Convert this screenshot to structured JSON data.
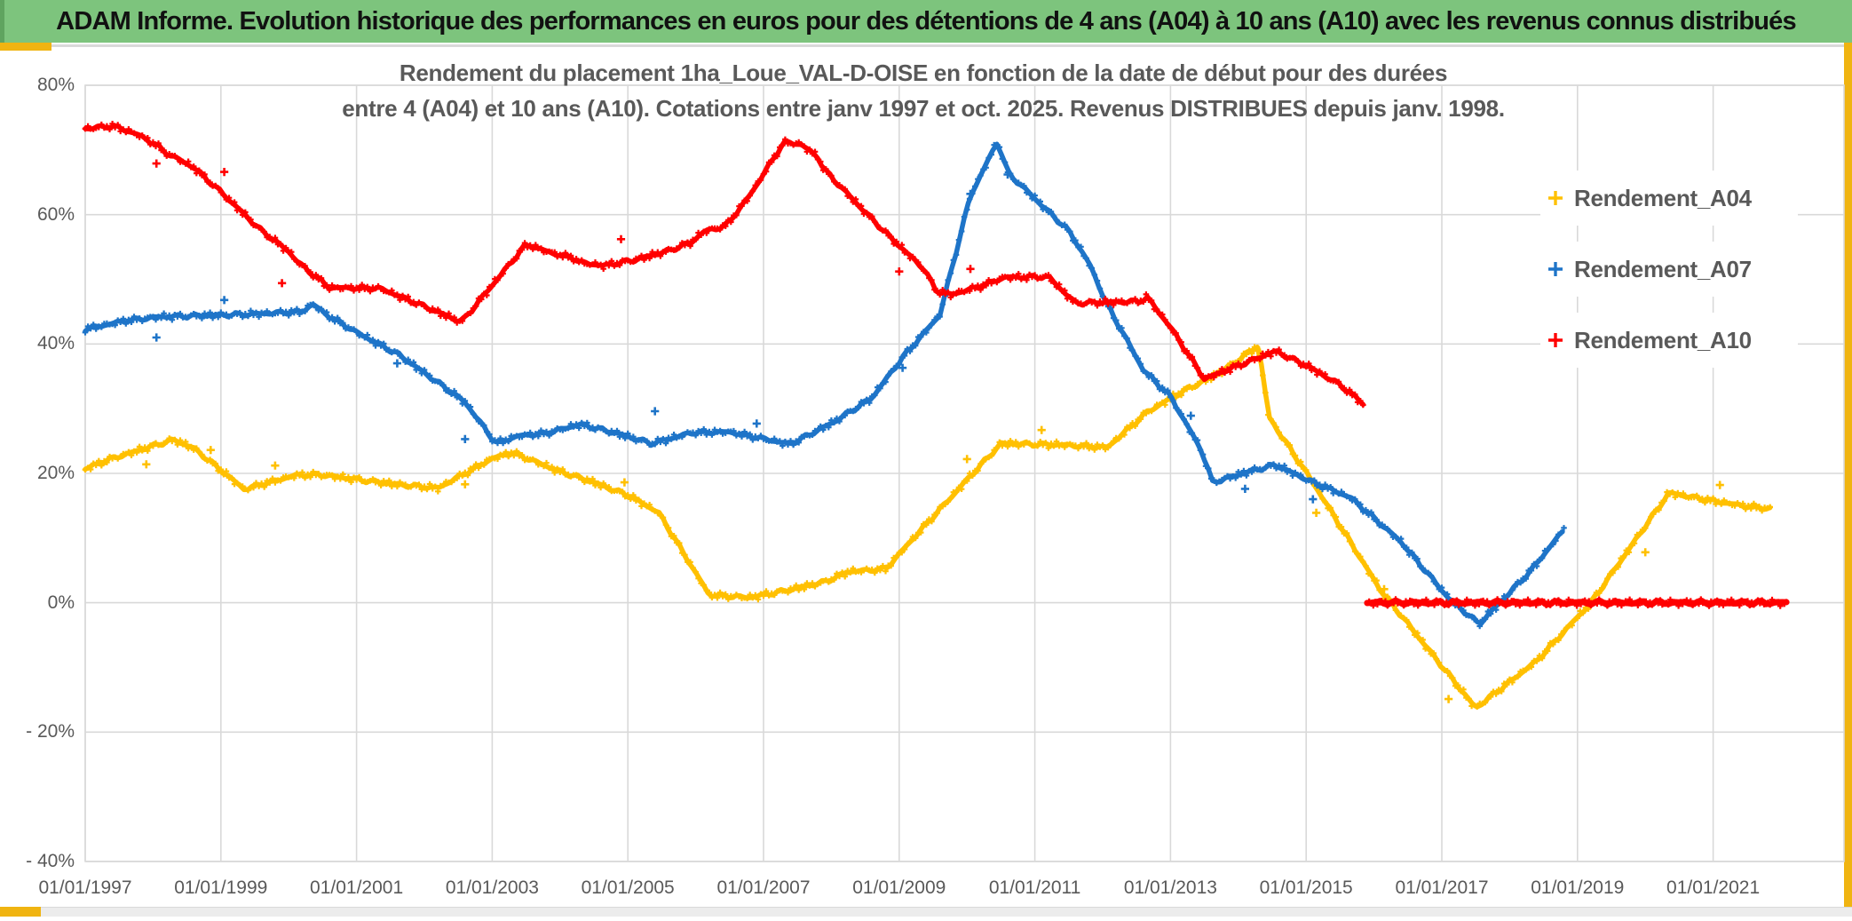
{
  "header": {
    "title": "ADAM Informe. Evolution historique des performances en euros pour des détentions de 4 ans (A04) à 10 ans (A10) avec les revenus connus distribués",
    "bar_color": "#7DC47D",
    "accent_gold": "#F0B411"
  },
  "chart_data": {
    "type": "scatter",
    "title_line1": "Rendement du placement 1ha_Loue_VAL-D-OISE en fonction de la date de début pour des durées",
    "title_line2": "entre 4 (A04) et 10 ans (A10). Cotations entre janv 1997 et oct. 2025. Revenus DISTRIBUES depuis janv. 1998.",
    "grid": true,
    "grid_color": "#D9D9D9",
    "text_color": "#595959",
    "legend_position": "right-inside",
    "x_domain": [
      1997.0,
      2022.93
    ],
    "y_domain": [
      -40,
      80
    ],
    "y_ticks": [
      {
        "v": 80,
        "label": "80%"
      },
      {
        "v": 60,
        "label": "60%"
      },
      {
        "v": 40,
        "label": "40%"
      },
      {
        "v": 20,
        "label": "20%"
      },
      {
        "v": 0,
        "label": "0%"
      },
      {
        "v": -20,
        "label": "- 20%"
      },
      {
        "v": -40,
        "label": "- 40%"
      }
    ],
    "x_ticks": [
      {
        "t": 1997,
        "label": "01/01/1997"
      },
      {
        "t": 1999,
        "label": "01/01/1999"
      },
      {
        "t": 2001,
        "label": "01/01/2001"
      },
      {
        "t": 2003,
        "label": "01/01/2003"
      },
      {
        "t": 2005,
        "label": "01/01/2005"
      },
      {
        "t": 2007,
        "label": "01/01/2007"
      },
      {
        "t": 2009,
        "label": "01/01/2009"
      },
      {
        "t": 2011,
        "label": "01/01/2011"
      },
      {
        "t": 2013,
        "label": "01/01/2013"
      },
      {
        "t": 2015,
        "label": "01/01/2015"
      },
      {
        "t": 2017,
        "label": "01/01/2017"
      },
      {
        "t": 2019,
        "label": "01/01/2019"
      },
      {
        "t": 2021,
        "label": "01/01/2021"
      }
    ],
    "series": [
      {
        "name": "Rendement_A04",
        "color": "#FFC000",
        "segments": [
          {
            "width": 5.5,
            "points": [
              [
                1997.0,
                20.7
              ],
              [
                1997.4,
                22.3
              ],
              [
                1998.3,
                25.2
              ],
              [
                1998.6,
                23.9
              ],
              [
                1999.35,
                17.5
              ],
              [
                1999.6,
                18.3
              ],
              [
                2000.1,
                19.7
              ],
              [
                2000.45,
                19.8
              ],
              [
                2001.2,
                18.8
              ],
              [
                2001.5,
                18.4
              ],
              [
                2002.2,
                17.7
              ],
              [
                2003.0,
                22.3
              ],
              [
                2003.3,
                23.2
              ],
              [
                2004.0,
                20.3
              ],
              [
                2004.5,
                18.6
              ],
              [
                2005.0,
                16.6
              ],
              [
                2005.45,
                14.0
              ],
              [
                2006.2,
                1.2
              ],
              [
                2006.8,
                0.8
              ],
              [
                2007.3,
                1.8
              ],
              [
                2007.9,
                3.2
              ],
              [
                2008.25,
                4.8
              ],
              [
                2008.8,
                5.2
              ],
              [
                2009.3,
                11.0
              ],
              [
                2010.0,
                19.0
              ],
              [
                2010.5,
                24.6
              ],
              [
                2011.4,
                24.4
              ],
              [
                2012.07,
                24.0
              ],
              [
                2012.66,
                29.5
              ],
              [
                2013.19,
                32.7
              ],
              [
                2013.74,
                35.6
              ],
              [
                2014.3,
                39.8
              ],
              [
                2014.45,
                28.7
              ],
              [
                2015.1,
                18.6
              ],
              [
                2016.1,
                1.9
              ],
              [
                2016.25,
                0.0
              ],
              [
                2017.5,
                -16.3
              ],
              [
                2018.4,
                -9.0
              ],
              [
                2019.2,
                0.0
              ],
              [
                2020.35,
                17.0
              ],
              [
                2020.9,
                15.9
              ],
              [
                2021.5,
                14.9
              ],
              [
                2021.87,
                14.5
              ]
            ]
          }
        ],
        "outliers": [
          [
            1997.9,
            21.4
          ],
          [
            1998.85,
            23.6
          ],
          [
            1999.8,
            21.2
          ],
          [
            2002.6,
            18.3
          ],
          [
            2004.95,
            18.6
          ],
          [
            2010.0,
            22.2
          ],
          [
            2011.1,
            26.7
          ],
          [
            2015.15,
            13.9
          ],
          [
            2016.15,
            2.1
          ],
          [
            2017.1,
            -14.9
          ],
          [
            2020.0,
            7.8
          ],
          [
            2021.1,
            18.2
          ]
        ]
      },
      {
        "name": "Rendement_A07",
        "color": "#1E74C8",
        "segments": [
          {
            "width": 5.5,
            "points": [
              [
                1997.0,
                42.3
              ],
              [
                1997.6,
                43.6
              ],
              [
                1998.1,
                44.2
              ],
              [
                1999.4,
                44.6
              ],
              [
                2000.2,
                45.0
              ],
              [
                2000.35,
                46.2
              ],
              [
                2000.55,
                44.6
              ],
              [
                2001.0,
                41.8
              ],
              [
                2001.6,
                38.5
              ],
              [
                2002.1,
                34.8
              ],
              [
                2002.6,
                31.0
              ],
              [
                2003.05,
                24.7
              ],
              [
                2003.4,
                25.8
              ],
              [
                2003.8,
                26.2
              ],
              [
                2004.3,
                27.6
              ],
              [
                2004.9,
                26.0
              ],
              [
                2005.35,
                24.6
              ],
              [
                2005.95,
                26.3
              ],
              [
                2006.5,
                26.4
              ],
              [
                2007.4,
                24.5
              ],
              [
                2008.05,
                28.0
              ],
              [
                2008.6,
                31.7
              ],
              [
                2009.05,
                37.9
              ],
              [
                2009.6,
                44.5
              ],
              [
                2010.05,
                62.9
              ],
              [
                2010.45,
                71.3
              ],
              [
                2010.6,
                66.5
              ],
              [
                2011.5,
                57.5
              ],
              [
                2011.8,
                52.5
              ],
              [
                2011.95,
                48.9
              ],
              [
                2012.05,
                46.4
              ],
              [
                2012.6,
                36.0
              ],
              [
                2013.0,
                31.9
              ],
              [
                2013.45,
                23.7
              ],
              [
                2013.62,
                18.6
              ],
              [
                2014.2,
                20.4
              ],
              [
                2014.55,
                21.3
              ],
              [
                2015.1,
                18.6
              ],
              [
                2015.65,
                16.3
              ],
              [
                2016.4,
                9.4
              ],
              [
                2017.1,
                0.7
              ],
              [
                2017.55,
                -3.3
              ],
              [
                2018.3,
                4.8
              ],
              [
                2018.8,
                11.3
              ]
            ]
          }
        ],
        "outliers": [
          [
            1998.05,
            41.0
          ],
          [
            1999.05,
            46.8
          ],
          [
            2001.6,
            37.0
          ],
          [
            2002.6,
            25.3
          ],
          [
            2005.4,
            29.6
          ],
          [
            2006.9,
            27.7
          ],
          [
            2009.05,
            36.3
          ],
          [
            2010.05,
            63.2
          ],
          [
            2010.6,
            66.2
          ],
          [
            2013.3,
            28.9
          ],
          [
            2014.1,
            17.6
          ],
          [
            2015.1,
            16.0
          ]
        ]
      },
      {
        "name": "Rendement_A10",
        "color": "#FF0000",
        "segments": [
          {
            "width": 5.5,
            "points": [
              [
                1997.0,
                73.3
              ],
              [
                1997.4,
                73.7
              ],
              [
                1997.75,
                72.5
              ],
              [
                1998.05,
                70.8
              ],
              [
                1998.15,
                69.8
              ],
              [
                1998.6,
                67.3
              ],
              [
                1999.0,
                63.5
              ],
              [
                1999.6,
                57.5
              ],
              [
                2000.0,
                54.3
              ],
              [
                2000.15,
                52.5
              ],
              [
                2000.6,
                48.7
              ],
              [
                2001.35,
                48.6
              ],
              [
                2002.0,
                45.8
              ],
              [
                2002.55,
                43.4
              ],
              [
                2003.5,
                55.4
              ],
              [
                2003.9,
                54.0
              ],
              [
                2004.2,
                53.3
              ],
              [
                2004.3,
                52.6
              ],
              [
                2004.65,
                52.1
              ],
              [
                2005.1,
                53.0
              ],
              [
                2005.6,
                54.4
              ],
              [
                2005.95,
                55.8
              ],
              [
                2006.1,
                57.3
              ],
              [
                2006.45,
                58.3
              ],
              [
                2006.8,
                63.0
              ],
              [
                2007.3,
                71.2
              ],
              [
                2007.55,
                70.9
              ],
              [
                2007.8,
                68.9
              ],
              [
                2007.9,
                66.9
              ],
              [
                2008.35,
                62.0
              ],
              [
                2008.8,
                57.2
              ],
              [
                2009.1,
                54.2
              ],
              [
                2009.35,
                51.8
              ],
              [
                2009.55,
                48.2
              ],
              [
                2009.75,
                47.6
              ],
              [
                2010.2,
                48.9
              ],
              [
                2010.55,
                50.3
              ],
              [
                2011.2,
                50.4
              ],
              [
                2011.6,
                46.3
              ],
              [
                2012.55,
                46.6
              ],
              [
                2012.65,
                47.3
              ],
              [
                2013.0,
                42.6
              ],
              [
                2013.5,
                34.6
              ],
              [
                2014.55,
                38.9
              ],
              [
                2015.05,
                36.4
              ],
              [
                2015.5,
                33.7
              ],
              [
                2015.85,
                30.7
              ]
            ]
          },
          {
            "width": 7,
            "marker_step": 0.03,
            "points": [
              [
                2015.9,
                0.0
              ],
              [
                2022.1,
                0.0
              ]
            ]
          }
        ],
        "outliers": [
          [
            1998.05,
            67.9
          ],
          [
            1999.05,
            66.6
          ],
          [
            1999.9,
            49.4
          ],
          [
            2004.9,
            56.2
          ],
          [
            2009.0,
            51.2
          ],
          [
            2010.05,
            51.6
          ]
        ]
      }
    ]
  }
}
